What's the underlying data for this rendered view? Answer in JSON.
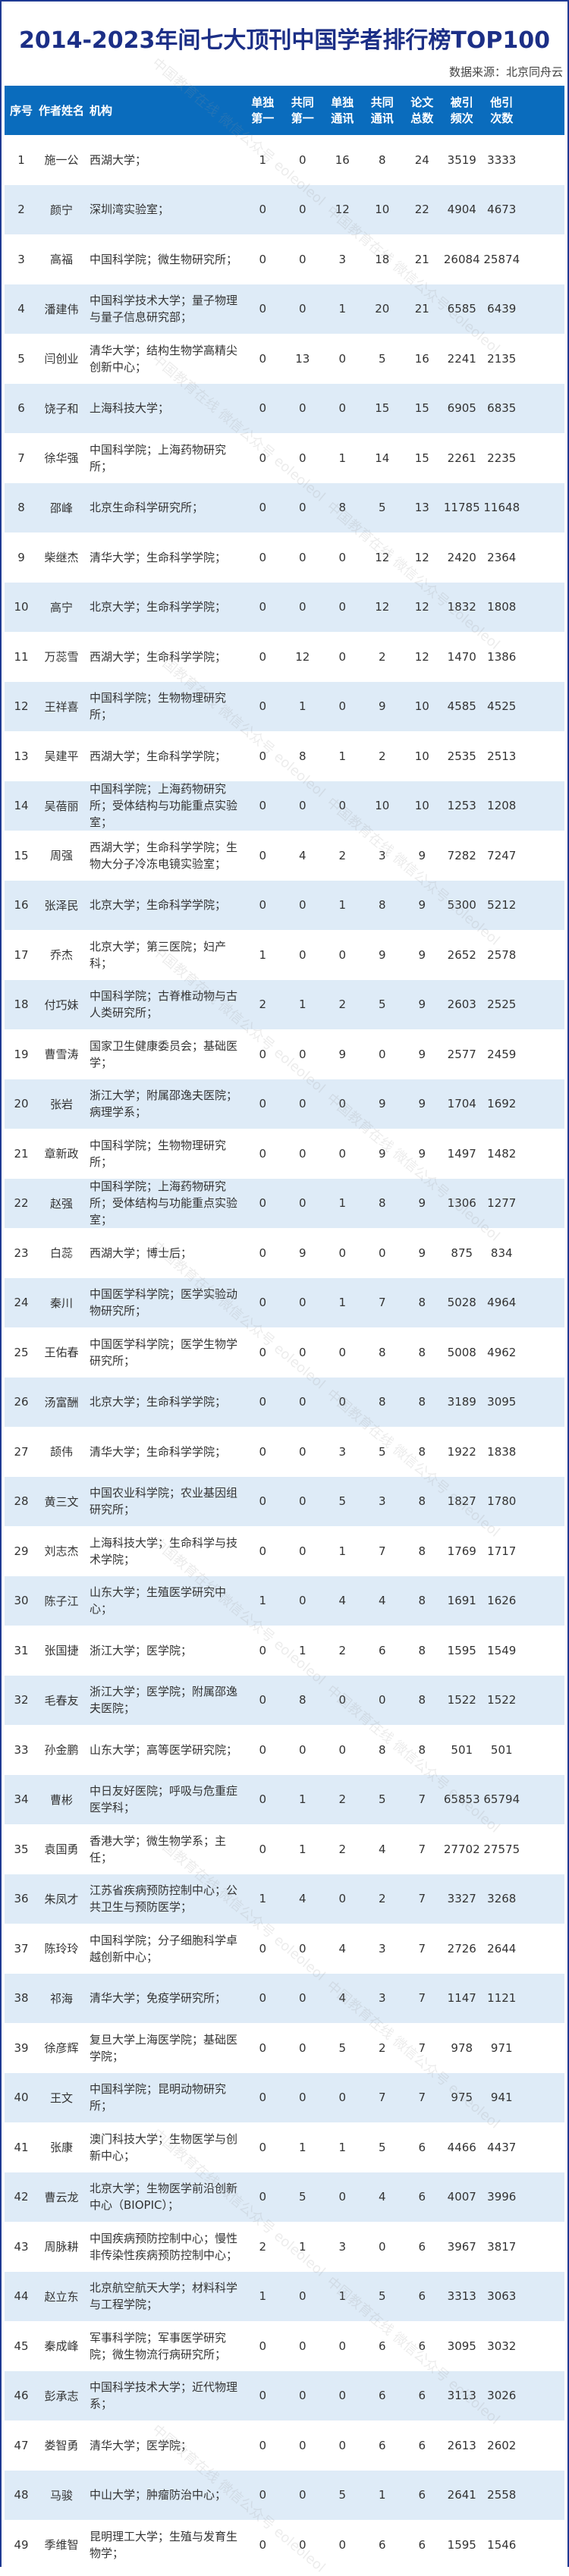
{
  "title": "2014-2023年间七大顶刊中国学者排行榜TOP100",
  "source": "数据来源：北京同舟云",
  "watermark": "中国教育在线 微信公众号 eoleoleol",
  "colors": {
    "header_bg": "#0a6cbd",
    "row_alt": "#deebf7",
    "title": "#1c2f86"
  },
  "headers": [
    "序号",
    "作者姓名",
    "机构",
    "单独\n第一",
    "共同\n第一",
    "单独\n通讯",
    "共同\n通讯",
    "论文\n总数",
    "被引\n频次",
    "他引\n次数"
  ],
  "rows": [
    [
      "1",
      "施一公",
      "西湖大学；",
      "1",
      "0",
      "16",
      "8",
      "24",
      "3519",
      "3333"
    ],
    [
      "2",
      "颜宁",
      "深圳湾实验室；",
      "0",
      "0",
      "12",
      "10",
      "22",
      "4904",
      "4673"
    ],
    [
      "3",
      "高福",
      "中国科学院；微生物研究所；",
      "0",
      "0",
      "3",
      "18",
      "21",
      "26084",
      "25874"
    ],
    [
      "4",
      "潘建伟",
      "中国科学技术大学；量子物理与量子信息研究部；",
      "0",
      "0",
      "1",
      "20",
      "21",
      "6585",
      "6439"
    ],
    [
      "5",
      "闫创业",
      "清华大学；结构生物学高精尖创新中心；",
      "0",
      "13",
      "0",
      "5",
      "16",
      "2241",
      "2135"
    ],
    [
      "6",
      "饶子和",
      "上海科技大学；",
      "0",
      "0",
      "0",
      "15",
      "15",
      "6905",
      "6835"
    ],
    [
      "7",
      "徐华强",
      "中国科学院；上海药物研究所；",
      "0",
      "0",
      "1",
      "14",
      "15",
      "2261",
      "2235"
    ],
    [
      "8",
      "邵峰",
      "北京生命科学研究所；",
      "0",
      "0",
      "8",
      "5",
      "13",
      "11785",
      "11648"
    ],
    [
      "9",
      "柴继杰",
      "清华大学；生命科学学院；",
      "0",
      "0",
      "0",
      "12",
      "12",
      "2420",
      "2364"
    ],
    [
      "10",
      "高宁",
      "北京大学；生命科学学院；",
      "0",
      "0",
      "0",
      "12",
      "12",
      "1832",
      "1808"
    ],
    [
      "11",
      "万蕊雪",
      "西湖大学；生命科学学院；",
      "0",
      "12",
      "0",
      "2",
      "12",
      "1470",
      "1386"
    ],
    [
      "12",
      "王祥喜",
      "中国科学院；生物物理研究所；",
      "0",
      "1",
      "0",
      "9",
      "10",
      "4585",
      "4525"
    ],
    [
      "13",
      "吴建平",
      "西湖大学；生命科学学院；",
      "0",
      "8",
      "1",
      "2",
      "10",
      "2535",
      "2513"
    ],
    [
      "14",
      "吴蓓丽",
      "中国科学院；上海药物研究所；受体结构与功能重点实验室；",
      "0",
      "0",
      "0",
      "10",
      "10",
      "1253",
      "1208"
    ],
    [
      "15",
      "周强",
      "西湖大学；生命科学学院；生物大分子冷冻电镜实验室；",
      "0",
      "4",
      "2",
      "3",
      "9",
      "7282",
      "7247"
    ],
    [
      "16",
      "张泽民",
      "北京大学；生命科学学院；",
      "0",
      "0",
      "1",
      "8",
      "9",
      "5300",
      "5212"
    ],
    [
      "17",
      "乔杰",
      "北京大学；第三医院；妇产科；",
      "1",
      "0",
      "0",
      "9",
      "9",
      "2652",
      "2578"
    ],
    [
      "18",
      "付巧妹",
      "中国科学院；古脊椎动物与古人类研究所；",
      "2",
      "1",
      "2",
      "5",
      "9",
      "2603",
      "2525"
    ],
    [
      "19",
      "曹雪涛",
      "国家卫生健康委员会；基础医学；",
      "0",
      "0",
      "9",
      "0",
      "9",
      "2577",
      "2459"
    ],
    [
      "20",
      "张岩",
      "浙江大学；附属邵逸夫医院；病理学系；",
      "0",
      "0",
      "0",
      "9",
      "9",
      "1704",
      "1692"
    ],
    [
      "21",
      "章新政",
      "中国科学院；生物物理研究所；",
      "0",
      "0",
      "0",
      "9",
      "9",
      "1497",
      "1482"
    ],
    [
      "22",
      "赵强",
      "中国科学院；上海药物研究所；受体结构与功能重点实验室；",
      "0",
      "0",
      "1",
      "8",
      "9",
      "1306",
      "1277"
    ],
    [
      "23",
      "白蕊",
      "西湖大学；博士后；",
      "0",
      "9",
      "0",
      "0",
      "9",
      "875",
      "834"
    ],
    [
      "24",
      "秦川",
      "中国医学科学院；医学实验动物研究所；",
      "0",
      "0",
      "1",
      "7",
      "8",
      "5028",
      "4964"
    ],
    [
      "25",
      "王佑春",
      "中国医学科学院；医学生物学研究所；",
      "0",
      "0",
      "0",
      "8",
      "8",
      "5008",
      "4962"
    ],
    [
      "26",
      "汤富酬",
      "北京大学；生命科学学院；",
      "0",
      "0",
      "0",
      "8",
      "8",
      "3189",
      "3095"
    ],
    [
      "27",
      "颉伟",
      "清华大学；生命科学学院；",
      "0",
      "0",
      "3",
      "5",
      "8",
      "1922",
      "1838"
    ],
    [
      "28",
      "黄三文",
      "中国农业科学院；农业基因组研究所；",
      "0",
      "0",
      "5",
      "3",
      "8",
      "1827",
      "1780"
    ],
    [
      "29",
      "刘志杰",
      "上海科技大学；生命科学与技术学院；",
      "0",
      "0",
      "1",
      "7",
      "8",
      "1769",
      "1717"
    ],
    [
      "30",
      "陈子江",
      "山东大学；生殖医学研究中心；",
      "1",
      "0",
      "4",
      "4",
      "8",
      "1691",
      "1626"
    ],
    [
      "31",
      "张国捷",
      "浙江大学；医学院；",
      "0",
      "1",
      "2",
      "6",
      "8",
      "1595",
      "1549"
    ],
    [
      "32",
      "毛春友",
      "浙江大学；医学院；附属邵逸夫医院；",
      "0",
      "8",
      "0",
      "0",
      "8",
      "1522",
      "1522"
    ],
    [
      "33",
      "孙金鹏",
      "山东大学；高等医学研究院；",
      "0",
      "0",
      "0",
      "8",
      "8",
      "501",
      "501"
    ],
    [
      "34",
      "曹彬",
      "中日友好医院；呼吸与危重症医学科；",
      "0",
      "1",
      "2",
      "5",
      "7",
      "65853",
      "65794"
    ],
    [
      "35",
      "袁国勇",
      "香港大学；微生物学系；主任；",
      "0",
      "1",
      "2",
      "4",
      "7",
      "27702",
      "27575"
    ],
    [
      "36",
      "朱凤才",
      "江苏省疾病预防控制中心；公共卫生与预防医学；",
      "1",
      "4",
      "0",
      "2",
      "7",
      "3327",
      "3268"
    ],
    [
      "37",
      "陈玲玲",
      "中国科学院；分子细胞科学卓越创新中心；",
      "0",
      "0",
      "4",
      "3",
      "7",
      "2726",
      "2644"
    ],
    [
      "38",
      "祁海",
      "清华大学；免疫学研究所；",
      "0",
      "0",
      "4",
      "3",
      "7",
      "1147",
      "1121"
    ],
    [
      "39",
      "徐彦辉",
      "复旦大学上海医学院；基础医学院；",
      "0",
      "0",
      "5",
      "2",
      "7",
      "978",
      "971"
    ],
    [
      "40",
      "王文",
      "中国科学院；昆明动物研究所；",
      "0",
      "0",
      "0",
      "7",
      "7",
      "975",
      "941"
    ],
    [
      "41",
      "张康",
      "澳门科技大学；生物医学与创新中心；",
      "0",
      "1",
      "1",
      "5",
      "6",
      "4466",
      "4437"
    ],
    [
      "42",
      "曹云龙",
      "北京大学；生物医学前沿创新中心（BIOPIC）；",
      "0",
      "5",
      "0",
      "4",
      "6",
      "4007",
      "3996"
    ],
    [
      "43",
      "周脉耕",
      "中国疾病预防控制中心；慢性非传染性疾病预防控制中心；",
      "2",
      "1",
      "3",
      "0",
      "6",
      "3967",
      "3817"
    ],
    [
      "44",
      "赵立东",
      "北京航空航天大学；材料科学与工程学院；",
      "1",
      "0",
      "1",
      "5",
      "6",
      "3313",
      "3063"
    ],
    [
      "45",
      "秦成峰",
      "军事科学院；军事医学研究院；微生物流行病研究所；",
      "0",
      "0",
      "0",
      "6",
      "6",
      "3095",
      "3032"
    ],
    [
      "46",
      "彭承志",
      "中国科学技术大学；近代物理系；",
      "0",
      "0",
      "0",
      "6",
      "6",
      "3113",
      "3026"
    ],
    [
      "47",
      "娄智勇",
      "清华大学；医学院；",
      "0",
      "0",
      "0",
      "6",
      "6",
      "2613",
      "2602"
    ],
    [
      "48",
      "马骏",
      "中山大学；肿瘤防治中心；",
      "0",
      "0",
      "5",
      "1",
      "6",
      "2641",
      "2558"
    ],
    [
      "49",
      "季维智",
      "昆明理工大学；生殖与发育生物学；",
      "0",
      "0",
      "0",
      "6",
      "6",
      "1595",
      "1546"
    ]
  ]
}
